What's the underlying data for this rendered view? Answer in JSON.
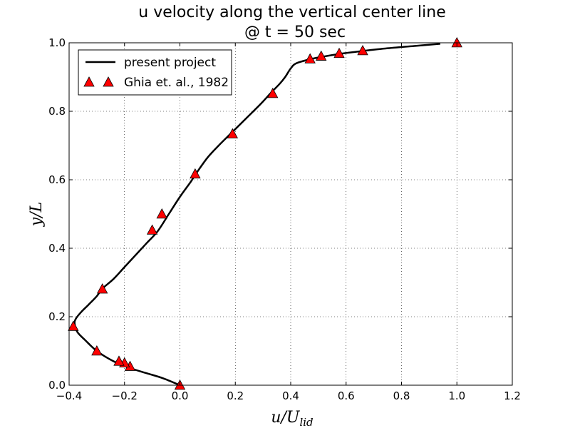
{
  "chart_data": {
    "type": "line",
    "title": [
      "u velocity along the vertical center line",
      "@ t = 50 sec"
    ],
    "xlabel": "u/U_lid",
    "xlabel_main": "u/U",
    "xlabel_sub": "lid",
    "ylabel": "y/L",
    "xlim": [
      -0.4,
      1.2
    ],
    "ylim": [
      0.0,
      1.0
    ],
    "xticks": [
      "-0.4",
      "-0.2",
      "0.0",
      "0.2",
      "0.4",
      "0.6",
      "0.8",
      "1.0",
      "1.2"
    ],
    "yticks": [
      "0.0",
      "0.2",
      "0.4",
      "0.6",
      "0.8",
      "1.0"
    ],
    "grid": true,
    "legend_position": "top-left",
    "series": [
      {
        "name": "present project",
        "kind": "line",
        "color": "#000000",
        "x": [
          0.0,
          -0.06,
          -0.12,
          -0.18,
          -0.24,
          -0.3,
          -0.34,
          -0.37,
          -0.38,
          -0.375,
          -0.355,
          -0.33,
          -0.3,
          -0.28,
          -0.24,
          -0.2,
          -0.16,
          -0.12,
          -0.08,
          -0.04,
          0.0,
          0.04,
          0.06,
          0.1,
          0.14,
          0.19,
          0.24,
          0.29,
          0.33,
          0.36,
          0.38,
          0.4,
          0.42,
          0.47,
          0.52,
          0.58,
          0.66,
          0.75,
          0.85,
          0.94
        ],
        "y": [
          0.0,
          0.02,
          0.035,
          0.05,
          0.07,
          0.1,
          0.13,
          0.155,
          0.18,
          0.195,
          0.215,
          0.235,
          0.26,
          0.282,
          0.31,
          0.345,
          0.38,
          0.415,
          0.45,
          0.5,
          0.55,
          0.595,
          0.62,
          0.665,
          0.7,
          0.74,
          0.78,
          0.82,
          0.855,
          0.88,
          0.9,
          0.925,
          0.94,
          0.952,
          0.96,
          0.968,
          0.976,
          0.984,
          0.991,
          0.997
        ]
      },
      {
        "name": "Ghia et. al., 1982",
        "kind": "scatter",
        "marker": "triangle",
        "color": "#ff0000",
        "x": [
          0.0,
          -0.18,
          -0.2,
          -0.22,
          -0.3,
          -0.385,
          -0.28,
          -0.1,
          -0.065,
          0.055,
          0.19,
          0.335,
          0.47,
          0.51,
          0.575,
          0.66,
          1.0
        ],
        "y": [
          0.0,
          0.055,
          0.065,
          0.07,
          0.1,
          0.172,
          0.281,
          0.453,
          0.5,
          0.617,
          0.734,
          0.852,
          0.953,
          0.961,
          0.969,
          0.977,
          1.0
        ]
      }
    ]
  }
}
